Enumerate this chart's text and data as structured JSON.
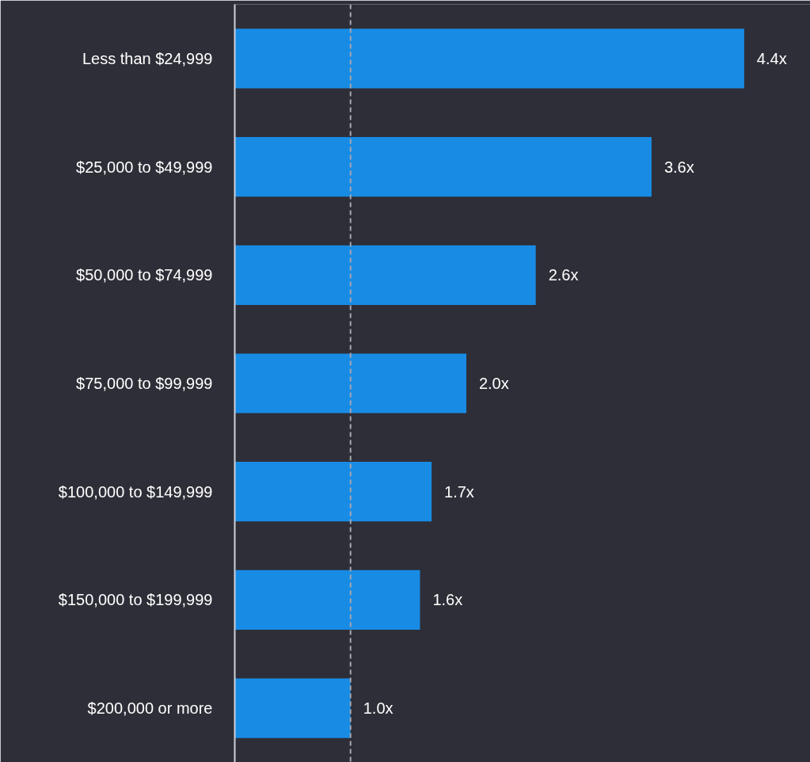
{
  "chart_data": {
    "type": "bar",
    "orientation": "horizontal",
    "categories": [
      "Less than $24,999",
      "$25,000 to $49,999",
      "$50,000 to $74,999",
      "$75,000 to $99,999",
      "$100,000 to $149,999",
      "$150,000 to $199,999",
      "$200,000 or more"
    ],
    "values": [
      4.4,
      3.6,
      2.6,
      2.0,
      1.7,
      1.6,
      1.0
    ],
    "value_labels": [
      "4.4x",
      "3.6x",
      "2.6x",
      "2.0x",
      "1.7x",
      "1.6x",
      "1.0x"
    ],
    "color": "#188ce5",
    "ref_lines": [
      {
        "axis": "x",
        "value": 1.0,
        "color": "#a6a6b0",
        "line_style": "dashed"
      }
    ],
    "grid": false
  }
}
